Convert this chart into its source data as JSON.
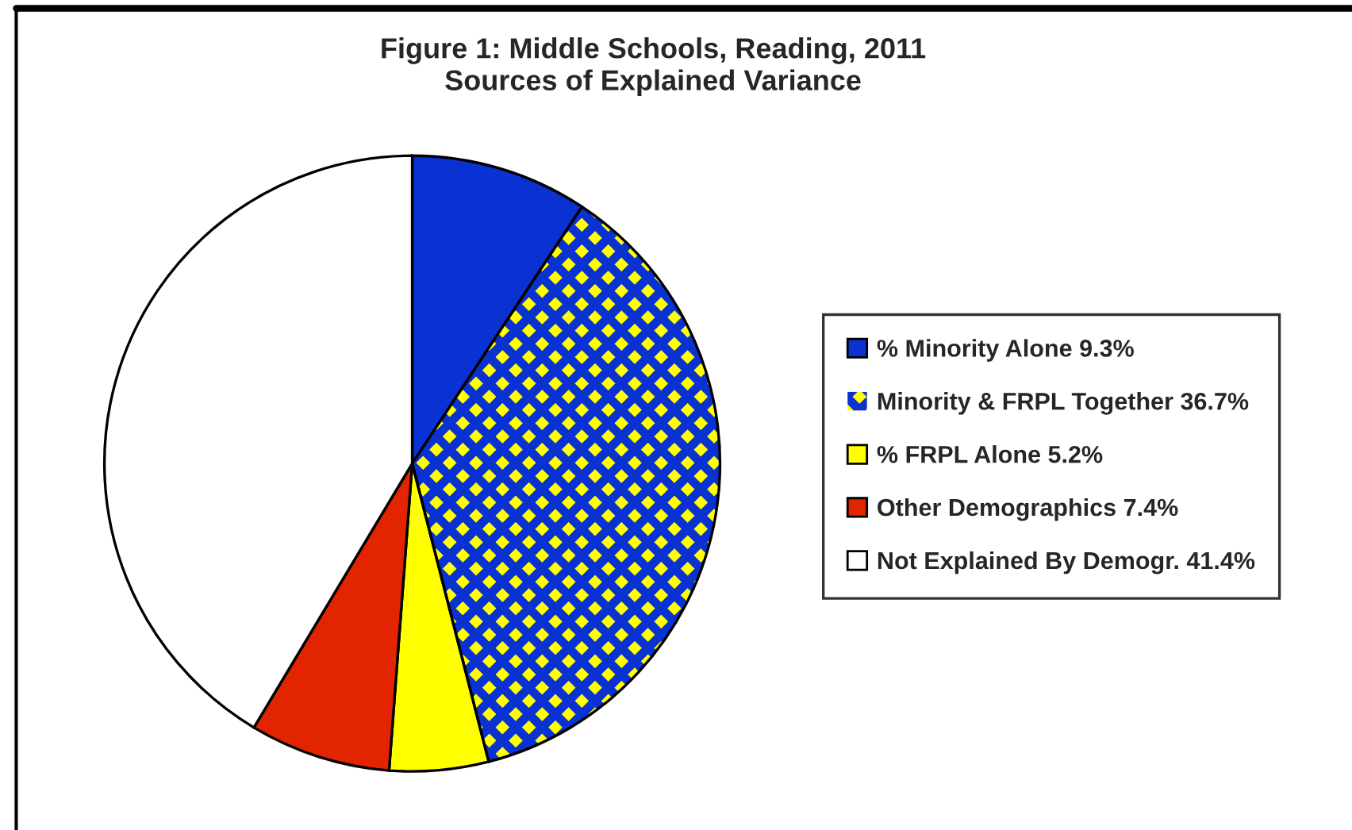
{
  "chart_data": {
    "type": "pie",
    "title": "Figure 1: Middle Schools, Reading, 2011\nSources of Explained Variance",
    "categories": [
      "% Minority Alone 9.3%",
      "Minority & FRPL Together 36.7%",
      "% FRPL Alone 5.2%",
      "Other Demographics 7.4%",
      "Not Explained By Demogr. 41.4%"
    ],
    "values": [
      9.3,
      36.7,
      5.2,
      7.4,
      41.4
    ],
    "colors": [
      "#0a32d2",
      "#ffff00",
      "#ffff00",
      "#e32400",
      "#ffffff"
    ],
    "legend": "right"
  }
}
